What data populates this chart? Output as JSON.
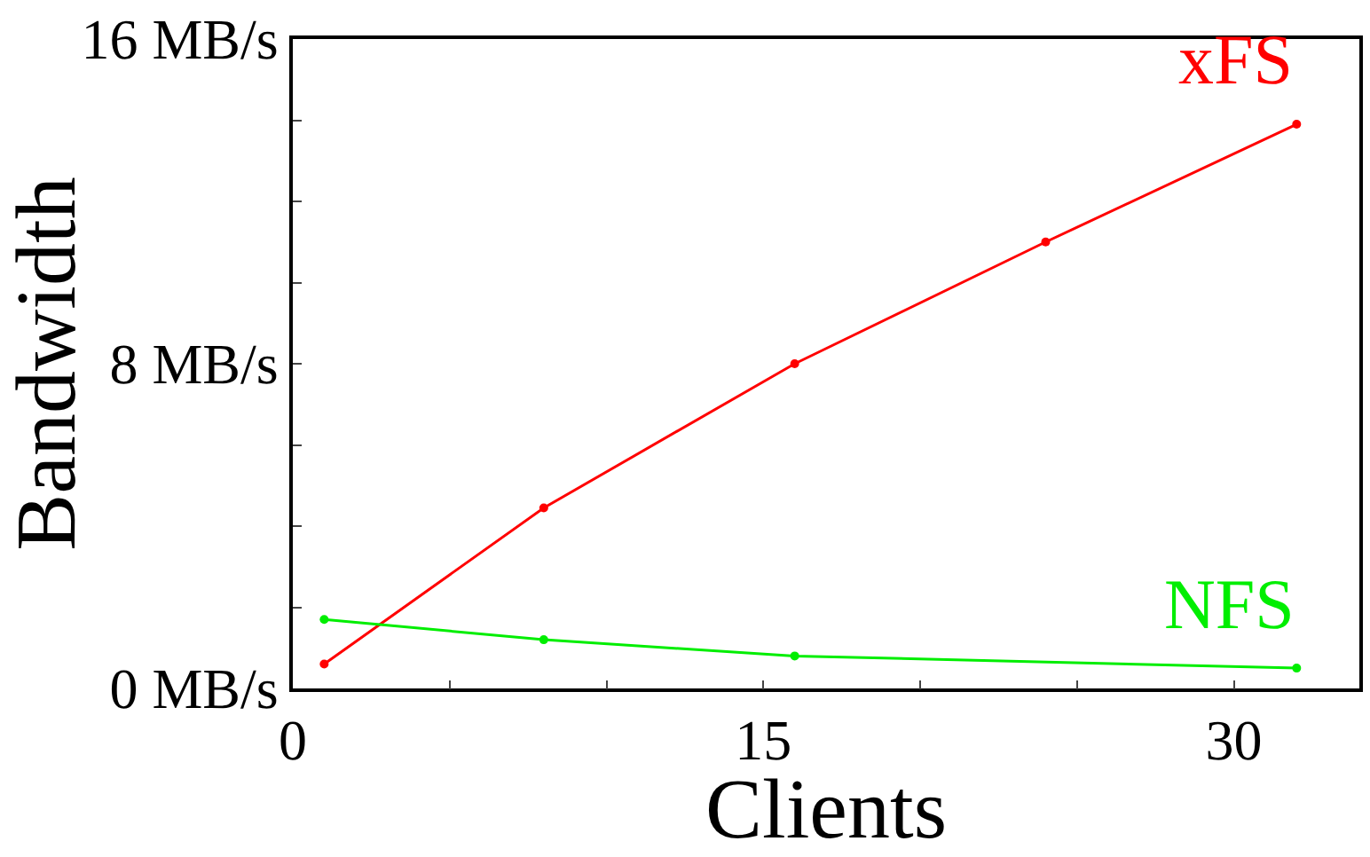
{
  "chart_data": {
    "type": "line",
    "xlabel": "Clients",
    "ylabel": "Bandwidth",
    "xlim": [
      0,
      34
    ],
    "xticks": [
      0,
      15,
      30,
      {
        "value": 5,
        "label": null
      },
      {
        "value": 10,
        "label": null
      },
      {
        "value": 20,
        "label": null
      },
      {
        "value": 25,
        "label": null
      }
    ],
    "ylim": [
      0,
      16
    ],
    "yticks": [
      {
        "value": 0,
        "label": "0 MB/s"
      },
      {
        "value": 8,
        "label": "8 MB/s"
      },
      {
        "value": 16,
        "label": "16 MB/s"
      },
      {
        "value": 2,
        "label": null
      },
      {
        "value": 4,
        "label": null
      },
      {
        "value": 6,
        "label": null
      },
      {
        "value": 10,
        "label": null
      },
      {
        "value": 12,
        "label": null
      },
      {
        "value": 14,
        "label": null
      }
    ],
    "x": [
      1,
      8,
      16,
      24,
      32
    ],
    "series": [
      {
        "name": "xFS",
        "color": "#ff0000",
        "values": [
          0.6,
          4.45,
          8.0,
          11.0,
          13.9
        ]
      },
      {
        "name": "NFS",
        "color": "#00ee00",
        "x": [
          1,
          8,
          16,
          32
        ],
        "values": [
          1.7,
          1.2,
          0.8,
          0.5
        ]
      }
    ],
    "marker": "circle",
    "line_style": "solid",
    "legend": false
  }
}
